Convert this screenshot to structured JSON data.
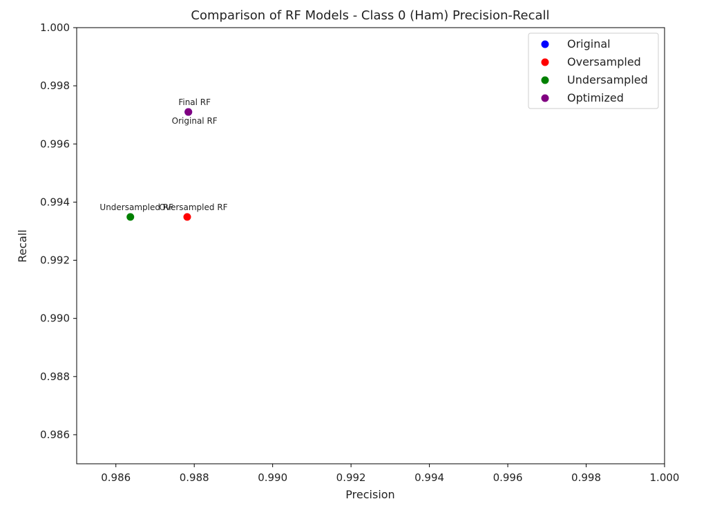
{
  "chart_data": {
    "type": "scatter",
    "title": "Comparison of RF Models - Class 0 (Ham) Precision-Recall",
    "xlabel": "Precision",
    "ylabel": "Recall",
    "xlim": [
      0.985,
      1.0
    ],
    "ylim": [
      0.985,
      1.0
    ],
    "xticks": [
      0.986,
      0.988,
      0.99,
      0.992,
      0.994,
      0.996,
      0.998,
      1.0
    ],
    "xtick_labels": [
      "0.986",
      "0.988",
      "0.990",
      "0.992",
      "0.994",
      "0.996",
      "0.998",
      "1.000"
    ],
    "yticks": [
      0.986,
      0.988,
      0.99,
      0.992,
      0.994,
      0.996,
      0.998,
      1.0
    ],
    "ytick_labels": [
      "0.986",
      "0.988",
      "0.990",
      "0.992",
      "0.994",
      "0.996",
      "0.998",
      "1.000"
    ],
    "grid": false,
    "legend_position": "top-right",
    "series": [
      {
        "name": "Original",
        "color": "#0000ff",
        "points": [
          {
            "x": 0.98785,
            "y": 0.9971,
            "label": "Original RF"
          }
        ]
      },
      {
        "name": "Oversampled",
        "color": "#ff0000",
        "points": [
          {
            "x": 0.98782,
            "y": 0.99349,
            "label": "Oversampled RF"
          }
        ]
      },
      {
        "name": "Undersampled",
        "color": "#008000",
        "points": [
          {
            "x": 0.98637,
            "y": 0.99349,
            "label": "Undersampled RF"
          }
        ]
      },
      {
        "name": "Optimized",
        "color": "#800080",
        "points": [
          {
            "x": 0.98785,
            "y": 0.9971,
            "label": "Final RF"
          }
        ]
      }
    ]
  }
}
